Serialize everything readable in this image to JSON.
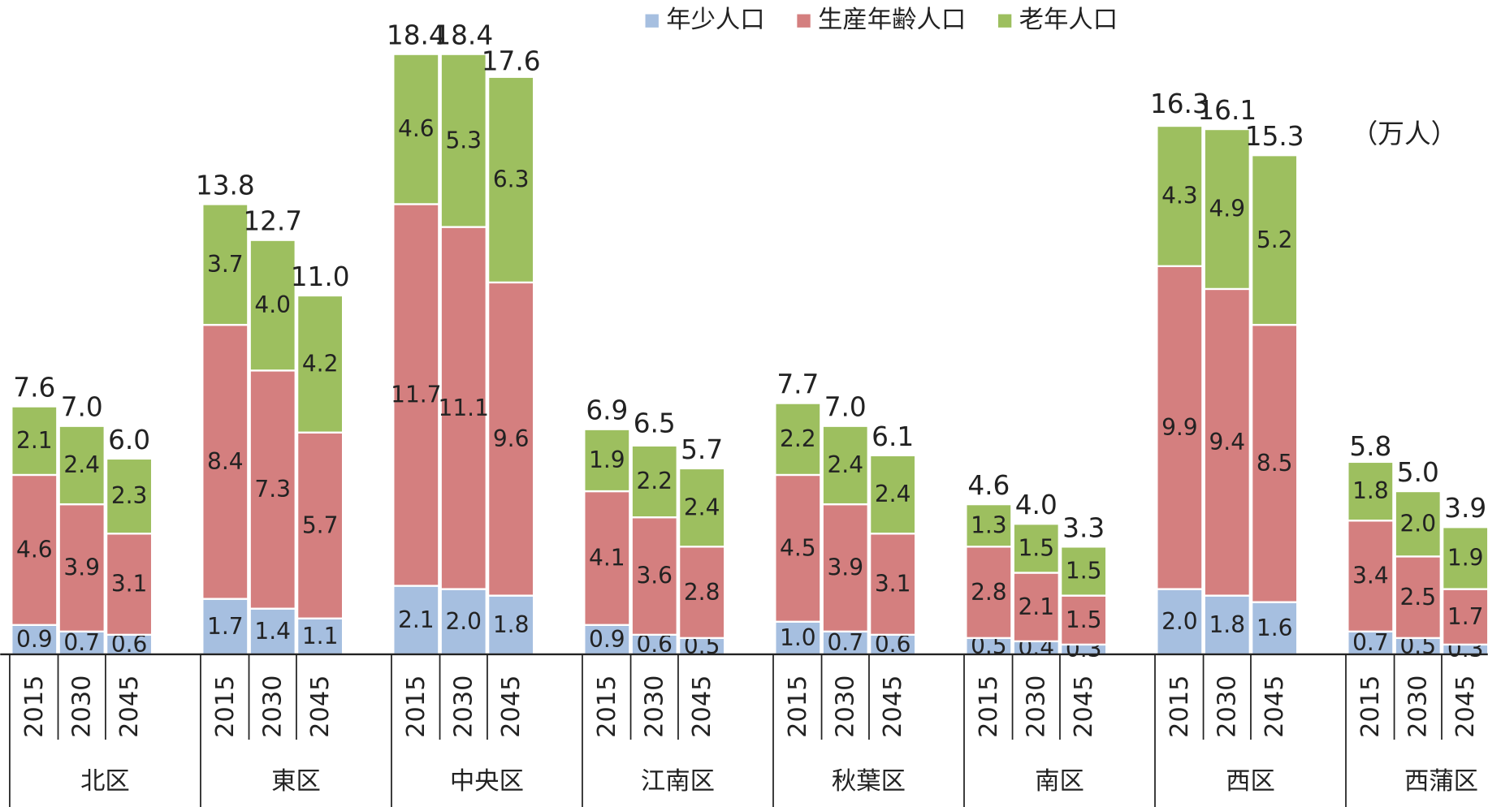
{
  "chart_data": {
    "type": "stacked_bar",
    "unit": "（万人）",
    "groups": [
      "北区",
      "東区",
      "中央区",
      "江南区",
      "秋葉区",
      "南区",
      "西区",
      "西蒲区"
    ],
    "categories": [
      "2015",
      "2030",
      "2045",
      "2015",
      "2030",
      "2045",
      "2015",
      "2030",
      "2045",
      "2015",
      "2030",
      "2045",
      "2015",
      "2030",
      "2045",
      "2015",
      "2030",
      "2045",
      "2015",
      "2030",
      "2045",
      "2015",
      "2030",
      "2045"
    ],
    "series": [
      {
        "name": "年少人口",
        "color": "#a6bfe0",
        "values": [
          0.9,
          0.7,
          0.6,
          1.7,
          1.4,
          1.1,
          2.1,
          2.0,
          1.8,
          0.9,
          0.6,
          0.5,
          1.0,
          0.7,
          0.6,
          0.5,
          0.4,
          0.3,
          2.0,
          1.8,
          1.6,
          0.7,
          0.5,
          0.3
        ],
        "value_labels": [
          "0.9",
          "0.7",
          "0.6",
          "1.7",
          "1.4",
          "1.1",
          "2.1",
          "2.0",
          "1.8",
          "0.9",
          "0.6",
          "0.5",
          "1.0",
          "0.7",
          "0.6",
          "0.5",
          "0.4",
          "0.3",
          "2.0",
          "1.8",
          "1.6",
          "0.7",
          "0.5",
          "0.3"
        ]
      },
      {
        "name": "生産年齢人口",
        "color": "#d47f7f",
        "values": [
          4.6,
          3.9,
          3.1,
          8.4,
          7.3,
          5.7,
          11.7,
          11.1,
          9.6,
          4.1,
          3.6,
          2.8,
          4.5,
          3.9,
          3.1,
          2.8,
          2.1,
          1.5,
          9.9,
          9.4,
          8.5,
          3.4,
          2.5,
          1.7
        ],
        "value_labels": [
          "4.6",
          "3.9",
          "3.1",
          "8.4",
          "7.3",
          "5.7",
          "11.7",
          "11.1",
          "9.6",
          "4.1",
          "3.6",
          "2.8",
          "4.5",
          "3.9",
          "3.1",
          "2.8",
          "2.1",
          "1.5",
          "9.9",
          "9.4",
          "8.5",
          "3.4",
          "2.5",
          "1.7"
        ]
      },
      {
        "name": "老年人口",
        "color": "#9dbf5f",
        "values": [
          2.1,
          2.4,
          2.3,
          3.7,
          4.0,
          4.2,
          4.6,
          5.3,
          6.3,
          1.9,
          2.2,
          2.4,
          2.2,
          2.4,
          2.4,
          1.3,
          1.5,
          1.5,
          4.3,
          4.9,
          5.2,
          1.8,
          2.0,
          1.9
        ],
        "value_labels": [
          "2.1",
          "2.4",
          "2.3",
          "3.7",
          "4.0",
          "4.2",
          "4.6",
          "5.3",
          "6.3",
          "1.9",
          "2.2",
          "2.4",
          "2.2",
          "2.4",
          "2.4",
          "1.3",
          "1.5",
          "1.5",
          "4.3",
          "4.9",
          "5.2",
          "1.8",
          "2.0",
          "1.9"
        ]
      }
    ],
    "totals": [
      7.6,
      7.0,
      6.0,
      13.8,
      12.7,
      11.0,
      18.4,
      18.4,
      17.6,
      6.9,
      6.5,
      5.7,
      7.7,
      7.0,
      6.1,
      4.6,
      4.0,
      3.3,
      16.3,
      16.1,
      15.3,
      5.8,
      5.0,
      3.9
    ],
    "total_labels": [
      "7.6",
      "7.0",
      "6.0",
      "13.8",
      "12.7",
      "11.0",
      "18.4",
      "18.4",
      "17.6",
      "6.9",
      "6.5",
      "5.7",
      "7.7",
      "7.0",
      "6.1",
      "4.6",
      "4.0",
      "3.3",
      "16.3",
      "16.1",
      "15.3",
      "5.8",
      "5.0",
      "3.9"
    ],
    "ylim": [
      0,
      20
    ],
    "legend": "top"
  }
}
